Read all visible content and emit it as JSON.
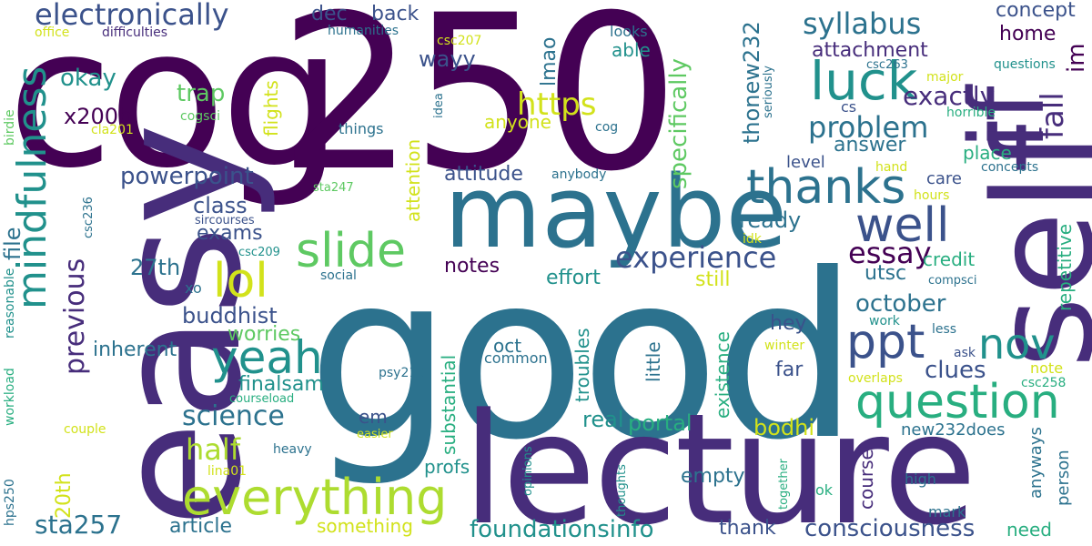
{
  "palette": {
    "c1": "#440154",
    "c2": "#472d7b",
    "c3": "#3b528b",
    "c4": "#2c728e",
    "c5": "#21918c",
    "c6": "#28ae80",
    "c7": "#5ec962",
    "c8": "#addc30",
    "c9": "#d2e21b",
    "c10": "#fde725"
  },
  "words": {
    "cog": "cog",
    "n250": "250",
    "good": "good",
    "easy": "easy",
    "self": "self",
    "lecture": "lecture",
    "maybe": "maybe",
    "if": "if",
    "luck": "luck",
    "thanks": "thanks",
    "well": "well",
    "mindfulness": "mindfulness",
    "question": "question",
    "everything": "everything",
    "slide": "slide",
    "lol": "lol",
    "yeah": "yeah",
    "ppt": "ppt",
    "nov": "nov",
    "electronically": "electronically",
    "syllabus": "syllabus",
    "problem": "problem",
    "experience": "experience",
    "essay": "essay",
    "https": "https",
    "exactly": "exactly",
    "previous": "previous",
    "half": "half",
    "science": "science",
    "powerpoint": "powerpoint",
    "sta257": "sta257",
    "foundationsinfo": "foundationsinfo",
    "consciousness": "consciousness",
    "specifically": "specifically",
    "thonew232": "thonew232",
    "fall": "fall",
    "im": "im",
    "attachment": "attachment",
    "answer": "answer",
    "dec": "dec",
    "back": "back",
    "concept": "concept",
    "home": "home",
    "okay": "okay",
    "trap": "trap",
    "x200b": "x200b",
    "wayy": "wayy",
    "lmao": "lmao",
    "anyone": "anyone",
    "attitude": "attitude",
    "class": "class",
    "exams": "exams",
    "n27th": "27th",
    "buddhist": "buddhist",
    "inherent": "inherent",
    "worries": "worries",
    "finalsam": "finalsam",
    "clues": "clues",
    "october": "october",
    "utsc": "utsc",
    "credit": "credit",
    "repetitive": "repetitive",
    "ready": "ready",
    "notes": "notes",
    "effort": "effort",
    "still": "still",
    "hey": "hey",
    "far": "far",
    "bodhi": "bodhi",
    "real": "real",
    "portal": "portal",
    "empty": "empty",
    "article": "article",
    "something": "something",
    "thank": "thank",
    "need": "need",
    "n20th": "20th",
    "file": "file",
    "attention": "attention",
    "substantial": "substantial",
    "troubles": "troubles",
    "little": "little",
    "existence": "existence",
    "oct": "oct",
    "common": "common",
    "profs": "profs",
    "em": "em",
    "coursei": "coursei",
    "anyways": "anyways",
    "person": "person",
    "new232does": "new232does",
    "note": "note",
    "mark": "mark",
    "high": "high",
    "ok": "ok",
    "level": "level",
    "care": "care",
    "place": "place",
    "concepts": "concepts",
    "flights": "flights",
    "looks": "looks",
    "able": "able",
    "office": "office",
    "difficulties": "difficulties",
    "humanities": "humanities",
    "csc207": "csc207",
    "seriously": "seriously",
    "csc263": "csc263",
    "major": "major",
    "questions": "questions",
    "horrible": "horrible",
    "cs": "cs",
    "idea": "idea",
    "cog_small": "cog",
    "things": "things",
    "cla201": "cla201",
    "cogsci": "cogsci",
    "birdie": "birdie",
    "anybody": "anybody",
    "hand": "hand",
    "hours": "hours",
    "sta247": "sta247",
    "csc236": "csc236",
    "sircourses": "sircourses",
    "csc209": "csc209",
    "idk": "idk",
    "compsci": "compsci",
    "social": "social",
    "xo": "xo",
    "reasonable": "reasonable",
    "workload": "workload",
    "hps250": "hps250",
    "psy210": "psy210",
    "courseload": "courseload",
    "lina01": "lina01",
    "couple": "couple",
    "heavy": "heavy",
    "easier": "easier",
    "opinions": "opinions",
    "thoughts": "thoughts",
    "together": "together",
    "work": "work",
    "less": "less",
    "winter": "winter",
    "ask": "ask",
    "overlaps": "overlaps",
    "csc258": "csc258"
  }
}
